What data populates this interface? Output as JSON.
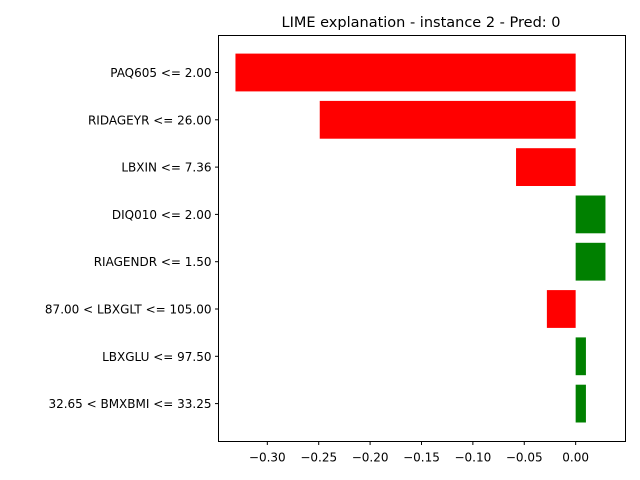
{
  "chart_data": {
    "type": "bar",
    "orientation": "horizontal",
    "title": "LIME explanation - instance 2 - Pred: 0",
    "xlabel": "",
    "ylabel": "",
    "categories": [
      "PAQ605 <= 2.00",
      "RIDAGEYR <= 26.00",
      "LBXIN <= 7.36",
      "DIQ010 <= 2.00",
      "RIAGENDR <= 1.50",
      "87.00 < LBXGLT <= 105.00",
      "LBXGLU <= 97.50",
      "32.65 < BMXBMI <= 33.25"
    ],
    "values": [
      -0.331,
      -0.249,
      -0.058,
      0.029,
      0.029,
      -0.028,
      0.01,
      0.01
    ],
    "xlim": [
      -0.3475,
      0.0485
    ],
    "xticks": [
      -0.3,
      -0.25,
      -0.2,
      -0.15,
      -0.1,
      -0.05,
      0.0
    ],
    "xtick_labels": [
      "−0.30",
      "−0.25",
      "−0.20",
      "−0.15",
      "−0.10",
      "−0.05",
      "0.00"
    ],
    "grid": false,
    "colors": {
      "negative": "#ff0000",
      "positive": "#008000",
      "axis": "#000000"
    }
  }
}
